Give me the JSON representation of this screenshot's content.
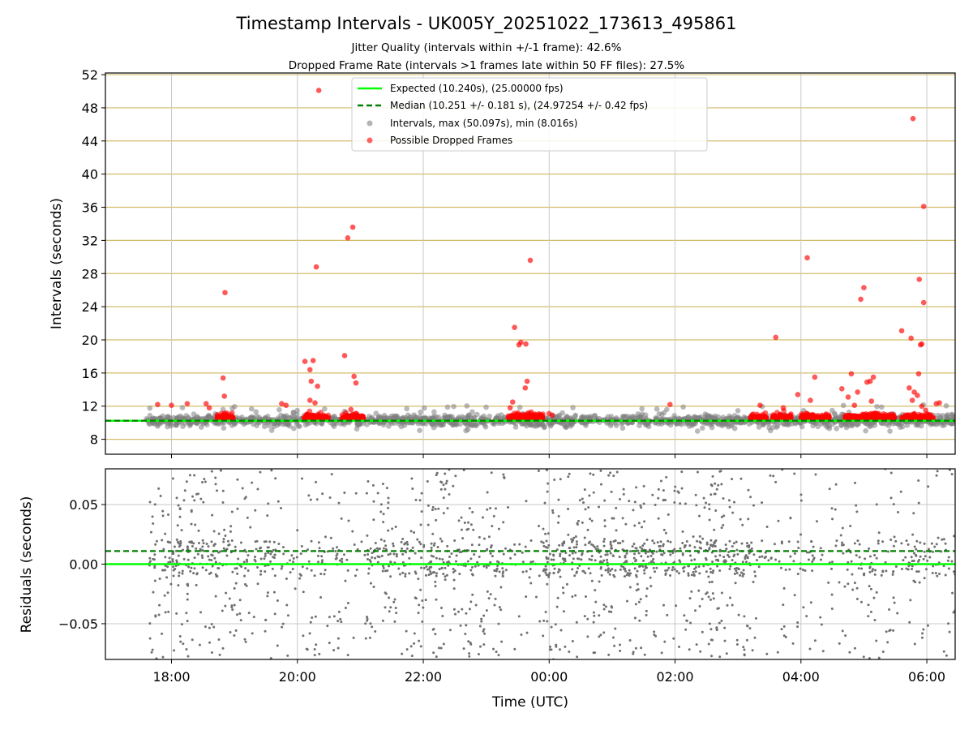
{
  "chart_data": [
    {
      "type": "scatter",
      "title": "Timestamp Intervals - UK005Y_20251022_173613_495861",
      "subtitle_1": "Jitter Quality (intervals within +/-1 frame): 42.6%",
      "subtitle_2": "Dropped Frame Rate (intervals >1 frames late within 50 FF files): 27.5%",
      "ylabel": "Intervals (seconds)",
      "ylim": [
        6.2,
        52.2
      ],
      "yticks": [
        8,
        12,
        16,
        20,
        24,
        28,
        32,
        36,
        40,
        44,
        48,
        52
      ],
      "ytick_labels": [
        "8",
        "12",
        "16",
        "20",
        "24",
        "28",
        "32",
        "36",
        "40",
        "44",
        "48",
        "52"
      ],
      "xlim_hours": [
        16.95,
        30.45
      ],
      "grid": "horizontal gold lines at y ticks, vertical gray lines at x ticks",
      "legend_position": "upper-center",
      "legend": [
        "Expected (10.240s), (25.00000 fps)",
        "Median (10.251 +/- 0.181 s), (24.97254 +/- 0.42 fps)",
        "Intervals, max (50.097s), min (8.016s)",
        "Possible Dropped Frames"
      ],
      "expected_interval": 10.24,
      "median_interval": 10.251,
      "interval_band": {
        "t_start_hours": 17.6,
        "t_end_hours": 30.45,
        "center": 10.25,
        "spread": 0.7
      },
      "dropped_frame_clusters": [
        {
          "t_start_hours": 18.72,
          "t_end_hours": 18.98
        },
        {
          "t_start_hours": 20.1,
          "t_end_hours": 20.5
        },
        {
          "t_start_hours": 20.7,
          "t_end_hours": 21.05
        },
        {
          "t_start_hours": 23.35,
          "t_end_hours": 23.9
        },
        {
          "t_start_hours": 27.2,
          "t_end_hours": 27.45
        },
        {
          "t_start_hours": 27.55,
          "t_end_hours": 27.85
        },
        {
          "t_start_hours": 28.0,
          "t_end_hours": 28.45
        },
        {
          "t_start_hours": 28.7,
          "t_end_hours": 29.5
        },
        {
          "t_start_hours": 29.6,
          "t_end_hours": 30.1
        }
      ],
      "dropped_frame_outliers": [
        {
          "t": 18.85,
          "v": 25.7
        },
        {
          "t": 18.82,
          "v": 15.4
        },
        {
          "t": 18.84,
          "v": 13.2
        },
        {
          "t": 18.55,
          "v": 12.3
        },
        {
          "t": 18.6,
          "v": 11.8
        },
        {
          "t": 17.78,
          "v": 12.2
        },
        {
          "t": 18.0,
          "v": 12.1
        },
        {
          "t": 18.25,
          "v": 12.3
        },
        {
          "t": 20.34,
          "v": 50.1
        },
        {
          "t": 20.3,
          "v": 28.8
        },
        {
          "t": 20.12,
          "v": 17.4
        },
        {
          "t": 20.25,
          "v": 17.5
        },
        {
          "t": 20.2,
          "v": 16.4
        },
        {
          "t": 20.22,
          "v": 15.0
        },
        {
          "t": 20.32,
          "v": 14.4
        },
        {
          "t": 20.2,
          "v": 12.7
        },
        {
          "t": 20.28,
          "v": 12.4
        },
        {
          "t": 19.75,
          "v": 12.3
        },
        {
          "t": 19.82,
          "v": 12.1
        },
        {
          "t": 20.8,
          "v": 32.3
        },
        {
          "t": 20.88,
          "v": 33.6
        },
        {
          "t": 20.75,
          "v": 18.1
        },
        {
          "t": 20.9,
          "v": 15.6
        },
        {
          "t": 20.93,
          "v": 14.8
        },
        {
          "t": 20.85,
          "v": 11.6
        },
        {
          "t": 23.7,
          "v": 29.6
        },
        {
          "t": 23.45,
          "v": 21.5
        },
        {
          "t": 23.55,
          "v": 19.7
        },
        {
          "t": 23.52,
          "v": 19.4
        },
        {
          "t": 23.63,
          "v": 19.5
        },
        {
          "t": 23.65,
          "v": 15.0
        },
        {
          "t": 23.62,
          "v": 14.2
        },
        {
          "t": 23.42,
          "v": 12.5
        },
        {
          "t": 23.38,
          "v": 11.8
        },
        {
          "t": 24.0,
          "v": 11.1
        },
        {
          "t": 24.05,
          "v": 10.9
        },
        {
          "t": 25.92,
          "v": 12.2
        },
        {
          "t": 27.35,
          "v": 12.1
        },
        {
          "t": 27.6,
          "v": 20.3
        },
        {
          "t": 27.72,
          "v": 11.8
        },
        {
          "t": 28.1,
          "v": 29.9
        },
        {
          "t": 28.22,
          "v": 15.5
        },
        {
          "t": 28.15,
          "v": 12.7
        },
        {
          "t": 27.95,
          "v": 13.4
        },
        {
          "t": 29.0,
          "v": 26.3
        },
        {
          "t": 28.95,
          "v": 24.9
        },
        {
          "t": 28.8,
          "v": 15.9
        },
        {
          "t": 29.05,
          "v": 14.9
        },
        {
          "t": 29.1,
          "v": 15.0
        },
        {
          "t": 29.15,
          "v": 15.5
        },
        {
          "t": 28.65,
          "v": 14.1
        },
        {
          "t": 28.75,
          "v": 13.1
        },
        {
          "t": 28.9,
          "v": 13.7
        },
        {
          "t": 29.12,
          "v": 12.6
        },
        {
          "t": 28.85,
          "v": 12.1
        },
        {
          "t": 29.78,
          "v": 46.7
        },
        {
          "t": 29.95,
          "v": 36.1
        },
        {
          "t": 29.88,
          "v": 27.3
        },
        {
          "t": 29.95,
          "v": 24.5
        },
        {
          "t": 29.6,
          "v": 21.1
        },
        {
          "t": 29.75,
          "v": 20.2
        },
        {
          "t": 29.92,
          "v": 19.5
        },
        {
          "t": 29.9,
          "v": 19.4
        },
        {
          "t": 29.87,
          "v": 15.9
        },
        {
          "t": 29.72,
          "v": 14.2
        },
        {
          "t": 29.8,
          "v": 13.7
        },
        {
          "t": 29.85,
          "v": 13.3
        },
        {
          "t": 29.77,
          "v": 12.7
        },
        {
          "t": 29.92,
          "v": 12.0
        },
        {
          "t": 30.15,
          "v": 12.3
        },
        {
          "t": 30.2,
          "v": 12.4
        },
        {
          "t": 29.98,
          "v": 11.5
        }
      ],
      "colors": {
        "expected": "#00ff00",
        "median": "#008000",
        "intervals": "#808080",
        "dropped": "#ff0000",
        "grid_h": "#d4bd6a",
        "grid_v": "#c8c8c8"
      }
    },
    {
      "type": "scatter",
      "ylabel": "Residuals (seconds)",
      "xlabel": "Time (UTC)",
      "ylim": [
        -0.08,
        0.08
      ],
      "yticks": [
        -0.05,
        0.0,
        0.05
      ],
      "ytick_labels": [
        "−0.05",
        "0.00",
        "0.05"
      ],
      "xlim_hours": [
        16.95,
        30.45
      ],
      "xticks_hours": [
        18,
        20,
        22,
        24,
        26,
        28,
        30
      ],
      "xtick_labels": [
        "18:00",
        "20:00",
        "22:00",
        "00:00",
        "02:00",
        "04:00",
        "06:00"
      ],
      "grid": "on",
      "expected_residual": 0.0,
      "median_residual": 0.011,
      "residual_spread": 0.08,
      "density_segments": [
        {
          "t_start": 17.65,
          "t_end": 19.7,
          "weight": 1.0
        },
        {
          "t_start": 19.7,
          "t_end": 20.8,
          "weight": 0.55
        },
        {
          "t_start": 20.8,
          "t_end": 21.1,
          "weight": 0.3
        },
        {
          "t_start": 21.1,
          "t_end": 23.3,
          "weight": 1.0
        },
        {
          "t_start": 23.3,
          "t_end": 23.9,
          "weight": 0.35
        },
        {
          "t_start": 23.9,
          "t_end": 27.2,
          "weight": 1.2
        },
        {
          "t_start": 27.2,
          "t_end": 28.4,
          "weight": 0.45
        },
        {
          "t_start": 28.4,
          "t_end": 30.45,
          "weight": 0.6
        }
      ],
      "colors": {
        "points": "#707070",
        "expected": "#00ff00",
        "median": "#008000",
        "grid": "#c8c8c8"
      }
    }
  ]
}
